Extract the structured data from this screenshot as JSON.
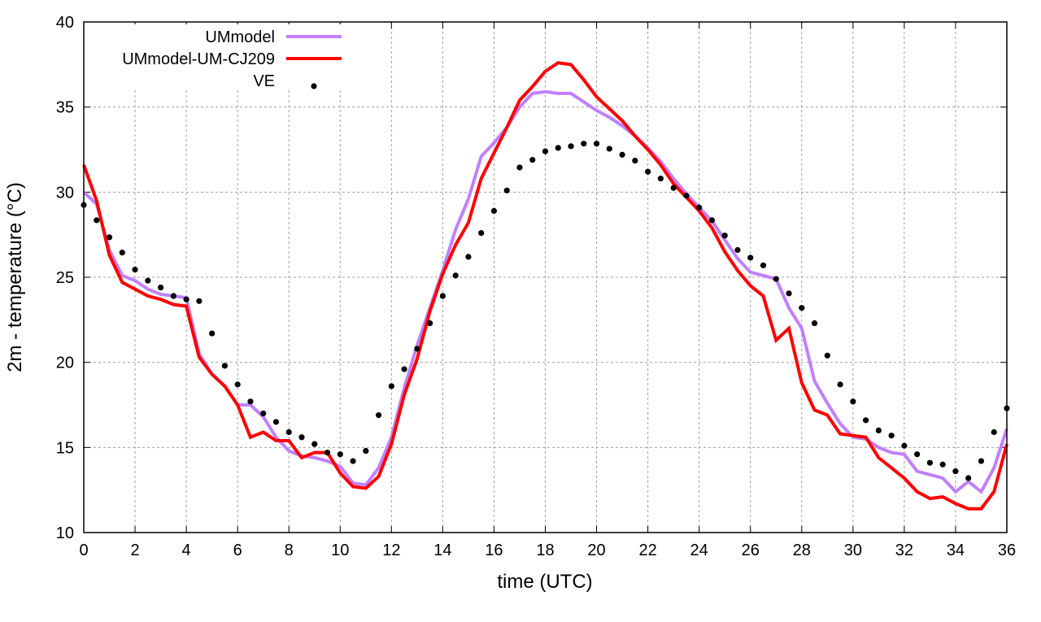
{
  "chart_data": {
    "type": "line",
    "title": "",
    "xlabel": "time (UTC)",
    "ylabel": "2m - temperature (°C)",
    "xlim": [
      0,
      36
    ],
    "ylim": [
      10,
      40
    ],
    "xticks": [
      0,
      2,
      4,
      6,
      8,
      10,
      12,
      14,
      16,
      18,
      20,
      22,
      24,
      26,
      28,
      30,
      32,
      34,
      36
    ],
    "yticks": [
      10,
      15,
      20,
      25,
      30,
      35,
      40
    ],
    "grid": true,
    "legend_position": "top-left",
    "x_step": 0.5,
    "series": [
      {
        "name": "UMmodel",
        "style": "line",
        "color": "#c080ff",
        "values": [
          30.0,
          29.3,
          26.6,
          25.1,
          24.8,
          24.3,
          24.0,
          23.9,
          23.8,
          20.5,
          19.3,
          18.6,
          17.5,
          17.5,
          16.8,
          15.6,
          14.8,
          14.5,
          14.4,
          14.2,
          13.9,
          12.9,
          12.8,
          13.8,
          15.6,
          18.5,
          21.0,
          23.2,
          25.4,
          27.8,
          29.6,
          32.1,
          32.9,
          33.8,
          35.0,
          35.8,
          35.9,
          35.8,
          35.8,
          35.3,
          34.8,
          34.4,
          33.9,
          33.3,
          32.6,
          31.8,
          30.8,
          29.9,
          29.1,
          28.3,
          27.2,
          26.1,
          25.3,
          25.1,
          24.9,
          23.2,
          22.0,
          18.9,
          17.6,
          16.4,
          15.6,
          15.5,
          15.0,
          14.7,
          14.6,
          13.6,
          13.4,
          13.2,
          12.4,
          13.0,
          12.4,
          13.8,
          16.1
        ]
      },
      {
        "name": "UMmodel-UM-CJ209",
        "style": "line",
        "color": "#ff0000",
        "values": [
          31.6,
          29.5,
          26.3,
          24.7,
          24.3,
          23.9,
          23.7,
          23.4,
          23.3,
          20.3,
          19.3,
          18.6,
          17.5,
          15.6,
          15.9,
          15.4,
          15.4,
          14.4,
          14.7,
          14.7,
          13.5,
          12.7,
          12.6,
          13.3,
          15.2,
          18.1,
          20.2,
          23.0,
          25.2,
          26.9,
          28.2,
          30.8,
          32.3,
          33.8,
          35.4,
          36.2,
          37.1,
          37.6,
          37.5,
          36.6,
          35.6,
          34.9,
          34.2,
          33.3,
          32.5,
          31.6,
          30.5,
          29.7,
          28.9,
          27.9,
          26.5,
          25.4,
          24.5,
          23.9,
          21.3,
          22.0,
          18.8,
          17.2,
          16.9,
          15.8,
          15.7,
          15.6,
          14.4,
          13.8,
          13.2,
          12.4,
          12.0,
          12.1,
          11.7,
          11.4,
          11.4,
          12.4,
          15.2
        ]
      },
      {
        "name": "VE",
        "style": "points",
        "color": "#000000",
        "values": [
          29.25,
          28.35,
          27.35,
          26.45,
          25.45,
          24.8,
          24.4,
          23.9,
          23.7,
          23.6,
          21.7,
          19.8,
          18.7,
          17.7,
          17.0,
          16.5,
          15.9,
          15.6,
          15.2,
          14.7,
          14.6,
          14.2,
          14.8,
          16.9,
          18.6,
          19.6,
          20.8,
          22.3,
          23.9,
          25.1,
          26.2,
          27.6,
          28.9,
          30.1,
          31.45,
          31.9,
          32.4,
          32.6,
          32.7,
          32.85,
          32.85,
          32.55,
          32.2,
          31.85,
          31.2,
          30.8,
          30.25,
          29.8,
          29.1,
          28.35,
          27.45,
          26.6,
          26.15,
          25.7,
          24.9,
          24.05,
          23.2,
          22.3,
          20.4,
          18.7,
          17.7,
          16.6,
          16.0,
          15.7,
          15.1,
          14.6,
          14.1,
          14.0,
          13.6,
          13.2,
          14.2,
          15.9,
          17.3
        ]
      }
    ]
  }
}
